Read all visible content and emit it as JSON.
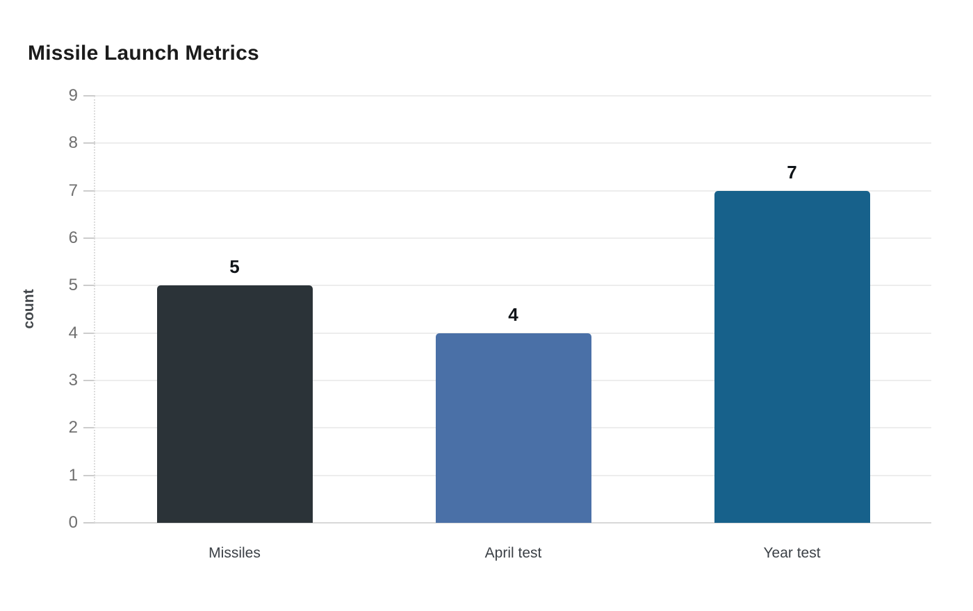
{
  "page": {
    "background_color": "#ffffff"
  },
  "chart_data": {
    "type": "bar",
    "title": "Missile Launch Metrics",
    "categories": [
      "Missiles",
      "April test",
      "Year test"
    ],
    "values": [
      5,
      4,
      7
    ],
    "value_labels": [
      "5",
      "4",
      "7"
    ],
    "bar_colors": [
      "#2b3338",
      "#4a70a7",
      "#17618b"
    ],
    "xlabel": "",
    "ylabel": "count",
    "ylim": [
      0,
      9
    ],
    "yticks": [
      0,
      1,
      2,
      3,
      4,
      5,
      6,
      7,
      8,
      9
    ],
    "grid": true,
    "legend": "none",
    "style_colors": {
      "title": "#1b1b1b",
      "grid": "#ededed",
      "baseline": "#d8d8d8",
      "tick_mark": "#cccccc",
      "tick_label": "#6f6f6f",
      "axis_dotted_line": "#dcdcdc",
      "value_label": "#101418",
      "category_label": "#3b4046",
      "y_axis_title": "#44484c",
      "background": "#ffffff"
    }
  }
}
